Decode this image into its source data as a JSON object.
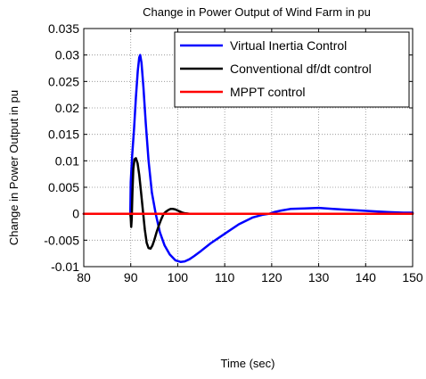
{
  "chart_data": {
    "type": "line",
    "title": "Change in Power Output of Wind Farm in pu",
    "xlabel": "Time (sec)",
    "ylabel": "Change in Power Output in pu",
    "xlim": [
      80,
      150
    ],
    "ylim": [
      -0.01,
      0.035
    ],
    "xticks": [
      80,
      90,
      100,
      110,
      120,
      130,
      140,
      150
    ],
    "xtick_labels": [
      "80",
      "90",
      "100",
      "110",
      "120",
      "130",
      "140",
      "150"
    ],
    "yticks": [
      -0.01,
      -0.005,
      0,
      0.005,
      0.01,
      0.015,
      0.02,
      0.025,
      0.03,
      0.035
    ],
    "ytick_labels": [
      "-0.01",
      "-0.005",
      "0",
      "0.005",
      "0.01",
      "0.015",
      "0.02",
      "0.025",
      "0.03",
      "0.035"
    ],
    "grid": true,
    "legend_position": "top-right",
    "series": [
      {
        "name": "Virtual Inertia Control",
        "color": "#0000ff",
        "x": [
          80,
          89.9,
          90.0,
          90.3,
          90.7,
          91.1,
          91.5,
          91.8,
          92.0,
          92.3,
          92.7,
          93.2,
          93.8,
          94.5,
          95.3,
          96.2,
          97.2,
          98.3,
          99.5,
          100.6,
          101.5,
          102.5,
          103.5,
          105,
          107,
          110,
          113,
          116,
          118,
          119.5,
          120.5,
          122,
          124,
          127,
          130,
          133,
          137,
          141,
          145,
          148,
          150
        ],
        "y": [
          0,
          0,
          0.006,
          0.011,
          0.016,
          0.022,
          0.027,
          0.0295,
          0.03,
          0.0285,
          0.024,
          0.017,
          0.01,
          0.004,
          0,
          -0.0035,
          -0.006,
          -0.0077,
          -0.0088,
          -0.0091,
          -0.009,
          -0.0086,
          -0.008,
          -0.007,
          -0.0056,
          -0.0038,
          -0.002,
          -0.0007,
          -0.0002,
          0,
          0.0003,
          0.0006,
          0.0009,
          0.001,
          0.0011,
          0.0009,
          0.0007,
          0.0005,
          0.0003,
          0.0002,
          0.0002
        ]
      },
      {
        "name": "Conventional df/dt control",
        "color": "#000000",
        "x": [
          80,
          89.9,
          90.0,
          90.1,
          90.2,
          90.35,
          90.55,
          90.8,
          91.1,
          91.45,
          91.8,
          92.2,
          92.6,
          93.0,
          93.4,
          93.8,
          94.2,
          94.6,
          95.0,
          95.5,
          96.0,
          96.5,
          97.0,
          97.5,
          98.0,
          98.5,
          99.0,
          99.5,
          100.0,
          100.5,
          101.0,
          101.5,
          102.0,
          102.5,
          103.0,
          150
        ],
        "y": [
          0,
          0,
          -0.0008,
          -0.0025,
          -0.001,
          0.004,
          0.0085,
          0.0103,
          0.0105,
          0.0095,
          0.0074,
          0.004,
          0.0005,
          -0.003,
          -0.0055,
          -0.0065,
          -0.0066,
          -0.006,
          -0.005,
          -0.0035,
          -0.0022,
          -0.001,
          0,
          0.0004,
          0.0007,
          0.0009,
          0.0009,
          0.0008,
          0.0006,
          0.0004,
          0.0002,
          0.0001,
          5e-05,
          0,
          0,
          0
        ]
      },
      {
        "name": "MPPT control",
        "color": "#ff0000",
        "x": [
          80,
          150
        ],
        "y": [
          0,
          0
        ]
      }
    ]
  }
}
